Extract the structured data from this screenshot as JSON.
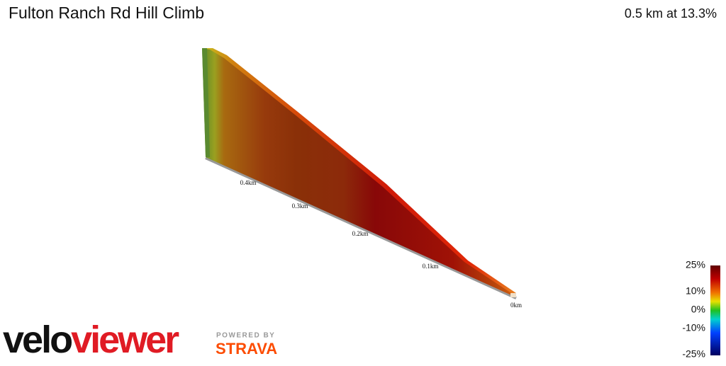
{
  "header": {
    "title": "Fulton Ranch Rd Hill Climb",
    "summary": "0.5 km at 13.3%"
  },
  "distance_labels": [
    "0.4km",
    "0.3km",
    "0.2km",
    "0.1km",
    "0km"
  ],
  "gradient_scale": [
    "25%",
    "10%",
    "0%",
    "-10%",
    "-25%"
  ],
  "branding": {
    "logo_part1": "velo",
    "logo_part2": "viewer",
    "powered_by": "POWERED BY",
    "partner": "STRAVA"
  }
}
